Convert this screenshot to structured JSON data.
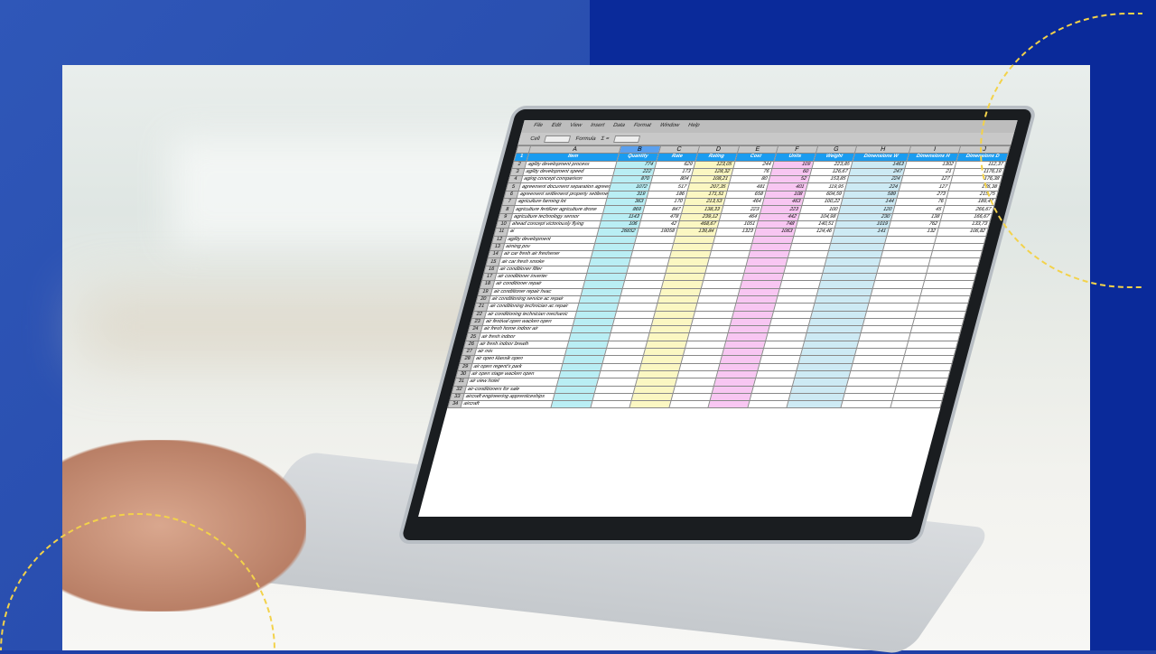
{
  "menu": [
    "File",
    "Edit",
    "View",
    "Insert",
    "Data",
    "Format",
    "Window",
    "Help"
  ],
  "toolbar": {
    "cell_label": "Cell",
    "formula_label": "Formula",
    "sum_icon": "Σ ="
  },
  "columns": [
    "A",
    "B",
    "C",
    "D",
    "E",
    "F",
    "G",
    "H",
    "I",
    "J"
  ],
  "headers": [
    "Item",
    "Quantity",
    "Rate",
    "Rating",
    "Cost",
    "Units",
    "Weight",
    "Dimensions W",
    "Dimensions H",
    "Dimensions D"
  ],
  "rows": [
    [
      "2",
      "agility development process",
      "774",
      "629",
      "123,05",
      "244",
      "109",
      "223,85",
      "1463",
      "1302",
      "112,37"
    ],
    [
      "3",
      "agility development speed",
      "222",
      "173",
      "128,32",
      "76",
      "60",
      "126,67",
      "247",
      "21",
      "1176,19"
    ],
    [
      "4",
      "aging concept comparison",
      "870",
      "804",
      "108,21",
      "80",
      "52",
      "153,85",
      "224",
      "127",
      "176,38"
    ],
    [
      "5",
      "agreement document separation agreement",
      "1072",
      "517",
      "207,35",
      "481",
      "401",
      "119,95",
      "224",
      "127",
      "176,38"
    ],
    [
      "6",
      "agreement settlement property settlement",
      "319",
      "186",
      "171,51",
      "658",
      "108",
      "604,59",
      "589",
      "273",
      "215,75"
    ],
    [
      "7",
      "agriculture farming lot",
      "363",
      "170",
      "213,53",
      "464",
      "463",
      "100,22",
      "144",
      "76",
      "189,47"
    ],
    [
      "8",
      "agriculture fertilizer agriculture drone",
      "869",
      "847",
      "138,33",
      "223",
      "223",
      "100",
      "120",
      "45",
      "266,67"
    ],
    [
      "9",
      "agriculture technology sensor",
      "1143",
      "478",
      "239,12",
      "464",
      "442",
      "104,98",
      "230",
      "138",
      "166,67"
    ],
    [
      "10",
      "ahead concept victoriously flying",
      "106",
      "42",
      "468,67",
      "1051",
      "748",
      "140,51",
      "1019",
      "762",
      "133,73"
    ],
    [
      "11",
      "ai",
      "26652",
      "19058",
      "139,84",
      "1323",
      "1063",
      "124,46",
      "141",
      "132",
      "106,82"
    ],
    [
      "12",
      "agility development",
      "",
      "",
      "",
      "",
      "",
      "",
      "",
      "",
      ""
    ],
    [
      "13",
      "aiming pov",
      "",
      "",
      "",
      "",
      "",
      "",
      "",
      "",
      ""
    ],
    [
      "14",
      "air car fresh air freshener",
      "",
      "",
      "",
      "",
      "",
      "",
      "",
      "",
      ""
    ],
    [
      "15",
      "air car fresh smoke",
      "",
      "",
      "",
      "",
      "",
      "",
      "",
      "",
      ""
    ],
    [
      "16",
      "air conditioner filter",
      "",
      "",
      "",
      "",
      "",
      "",
      "",
      "",
      ""
    ],
    [
      "17",
      "air conditioner inverter",
      "",
      "",
      "",
      "",
      "",
      "",
      "",
      "",
      ""
    ],
    [
      "18",
      "air conditioner repair",
      "",
      "",
      "",
      "",
      "",
      "",
      "",
      "",
      ""
    ],
    [
      "19",
      "air conditioner repair hvac",
      "",
      "",
      "",
      "",
      "",
      "",
      "",
      "",
      ""
    ],
    [
      "20",
      "air conditioning service ac repair",
      "",
      "",
      "",
      "",
      "",
      "",
      "",
      "",
      ""
    ],
    [
      "21",
      "air conditioning technician ac repair",
      "",
      "",
      "",
      "",
      "",
      "",
      "",
      "",
      ""
    ],
    [
      "22",
      "air conditioning technician mechanic",
      "",
      "",
      "",
      "",
      "",
      "",
      "",
      "",
      ""
    ],
    [
      "23",
      "air festival open wacken open",
      "",
      "",
      "",
      "",
      "",
      "",
      "",
      "",
      ""
    ],
    [
      "24",
      "air fresh home indoor air",
      "",
      "",
      "",
      "",
      "",
      "",
      "",
      "",
      ""
    ],
    [
      "25",
      "air fresh indoor",
      "",
      "",
      "",
      "",
      "",
      "",
      "",
      "",
      ""
    ],
    [
      "26",
      "air fresh indoor breath",
      "",
      "",
      "",
      "",
      "",
      "",
      "",
      "",
      ""
    ],
    [
      "27",
      "air mix",
      "",
      "",
      "",
      "",
      "",
      "",
      "",
      "",
      ""
    ],
    [
      "28",
      "air open klassik open",
      "",
      "",
      "",
      "",
      "",
      "",
      "",
      "",
      ""
    ],
    [
      "29",
      "air open regent's park",
      "",
      "",
      "",
      "",
      "",
      "",
      "",
      "",
      ""
    ],
    [
      "30",
      "air open stage wacken open",
      "",
      "",
      "",
      "",
      "",
      "",
      "",
      "",
      ""
    ],
    [
      "31",
      "air view hotel",
      "",
      "",
      "",
      "",
      "",
      "",
      "",
      "",
      ""
    ],
    [
      "32",
      "air-conditioners for sale",
      "",
      "",
      "",
      "",
      "",
      "",
      "",
      "",
      ""
    ],
    [
      "33",
      "aircraft engineering apprenticeships",
      "",
      "",
      "",
      "",
      "",
      "",
      "",
      "",
      ""
    ],
    [
      "34",
      "aircraft",
      "",
      "",
      "",
      "",
      "",
      "",
      "",
      "",
      ""
    ]
  ],
  "colors": {
    "header_blue": "#1a9cf0",
    "quantity": "#b9eef4",
    "rating": "#fbf7c2",
    "units": "#f8c6f2",
    "dimensions_w": "#cdeaf4",
    "accent_dash": "#f3d24a"
  }
}
